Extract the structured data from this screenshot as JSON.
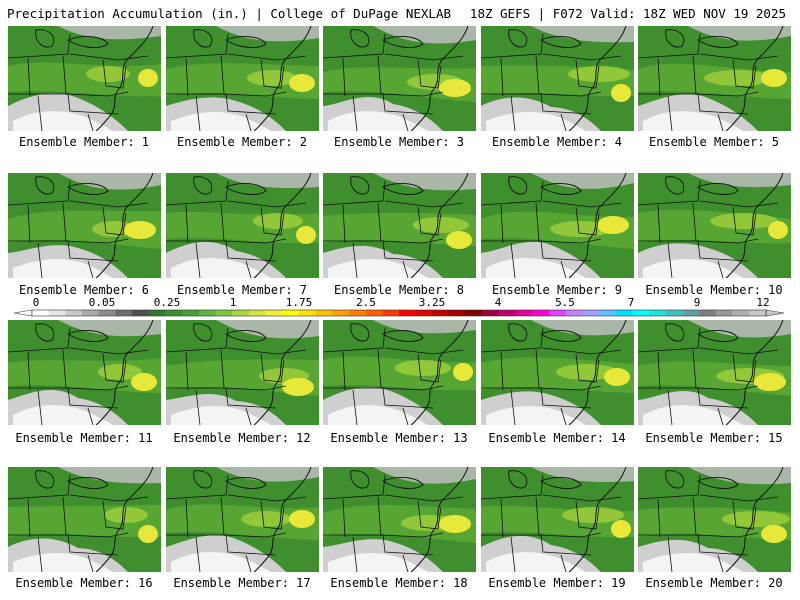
{
  "header": {
    "left": "Precipitation Accumulation (in.) | College of DuPage NEXLAB",
    "right": "18Z GEFS | F072 Valid: 18Z WED NOV 19 2025"
  },
  "members": [
    {
      "label": "Ensemble Member: 1"
    },
    {
      "label": "Ensemble Member: 2"
    },
    {
      "label": "Ensemble Member: 3"
    },
    {
      "label": "Ensemble Member: 4"
    },
    {
      "label": "Ensemble Member: 5"
    },
    {
      "label": "Ensemble Member: 6"
    },
    {
      "label": "Ensemble Member: 7"
    },
    {
      "label": "Ensemble Member: 8"
    },
    {
      "label": "Ensemble Member: 9"
    },
    {
      "label": "Ensemble Member: 10"
    },
    {
      "label": "Ensemble Member: 11"
    },
    {
      "label": "Ensemble Member: 12"
    },
    {
      "label": "Ensemble Member: 13"
    },
    {
      "label": "Ensemble Member: 14"
    },
    {
      "label": "Ensemble Member: 15"
    },
    {
      "label": "Ensemble Member: 16"
    },
    {
      "label": "Ensemble Member: 17"
    },
    {
      "label": "Ensemble Member: 18"
    },
    {
      "label": "Ensemble Member: 19"
    },
    {
      "label": "Ensemble Member: 20"
    }
  ],
  "colorbar": {
    "labels": [
      "0",
      "0.05",
      "0.25",
      "1",
      "1.75",
      "2.5",
      "3.25",
      "4",
      "5.5",
      "7",
      "9",
      "12"
    ],
    "colors": [
      "#ffffff",
      "#e6e6e6",
      "#c8c8c8",
      "#aaaaaa",
      "#8c8c8c",
      "#6e6e6e",
      "#505050",
      "#2f7a2f",
      "#3a8f32",
      "#46a036",
      "#5ab33a",
      "#7cc73e",
      "#a8d83e",
      "#d4e63c",
      "#f0f03a",
      "#ffff00",
      "#ffe000",
      "#ffc000",
      "#ffa000",
      "#ff8000",
      "#ff6000",
      "#ff3c00",
      "#ff0000",
      "#e00000",
      "#c00000",
      "#a00000",
      "#800000",
      "#a00040",
      "#c00070",
      "#e000a0",
      "#ff00d0",
      "#e040ff",
      "#c080ff",
      "#a0a0ff",
      "#60c0ff",
      "#00e0ff",
      "#00ffff",
      "#20e0e0",
      "#40c0c0",
      "#60a0a0",
      "#808080",
      "#999999",
      "#b0b0b0",
      "#c8c8c8"
    ]
  }
}
